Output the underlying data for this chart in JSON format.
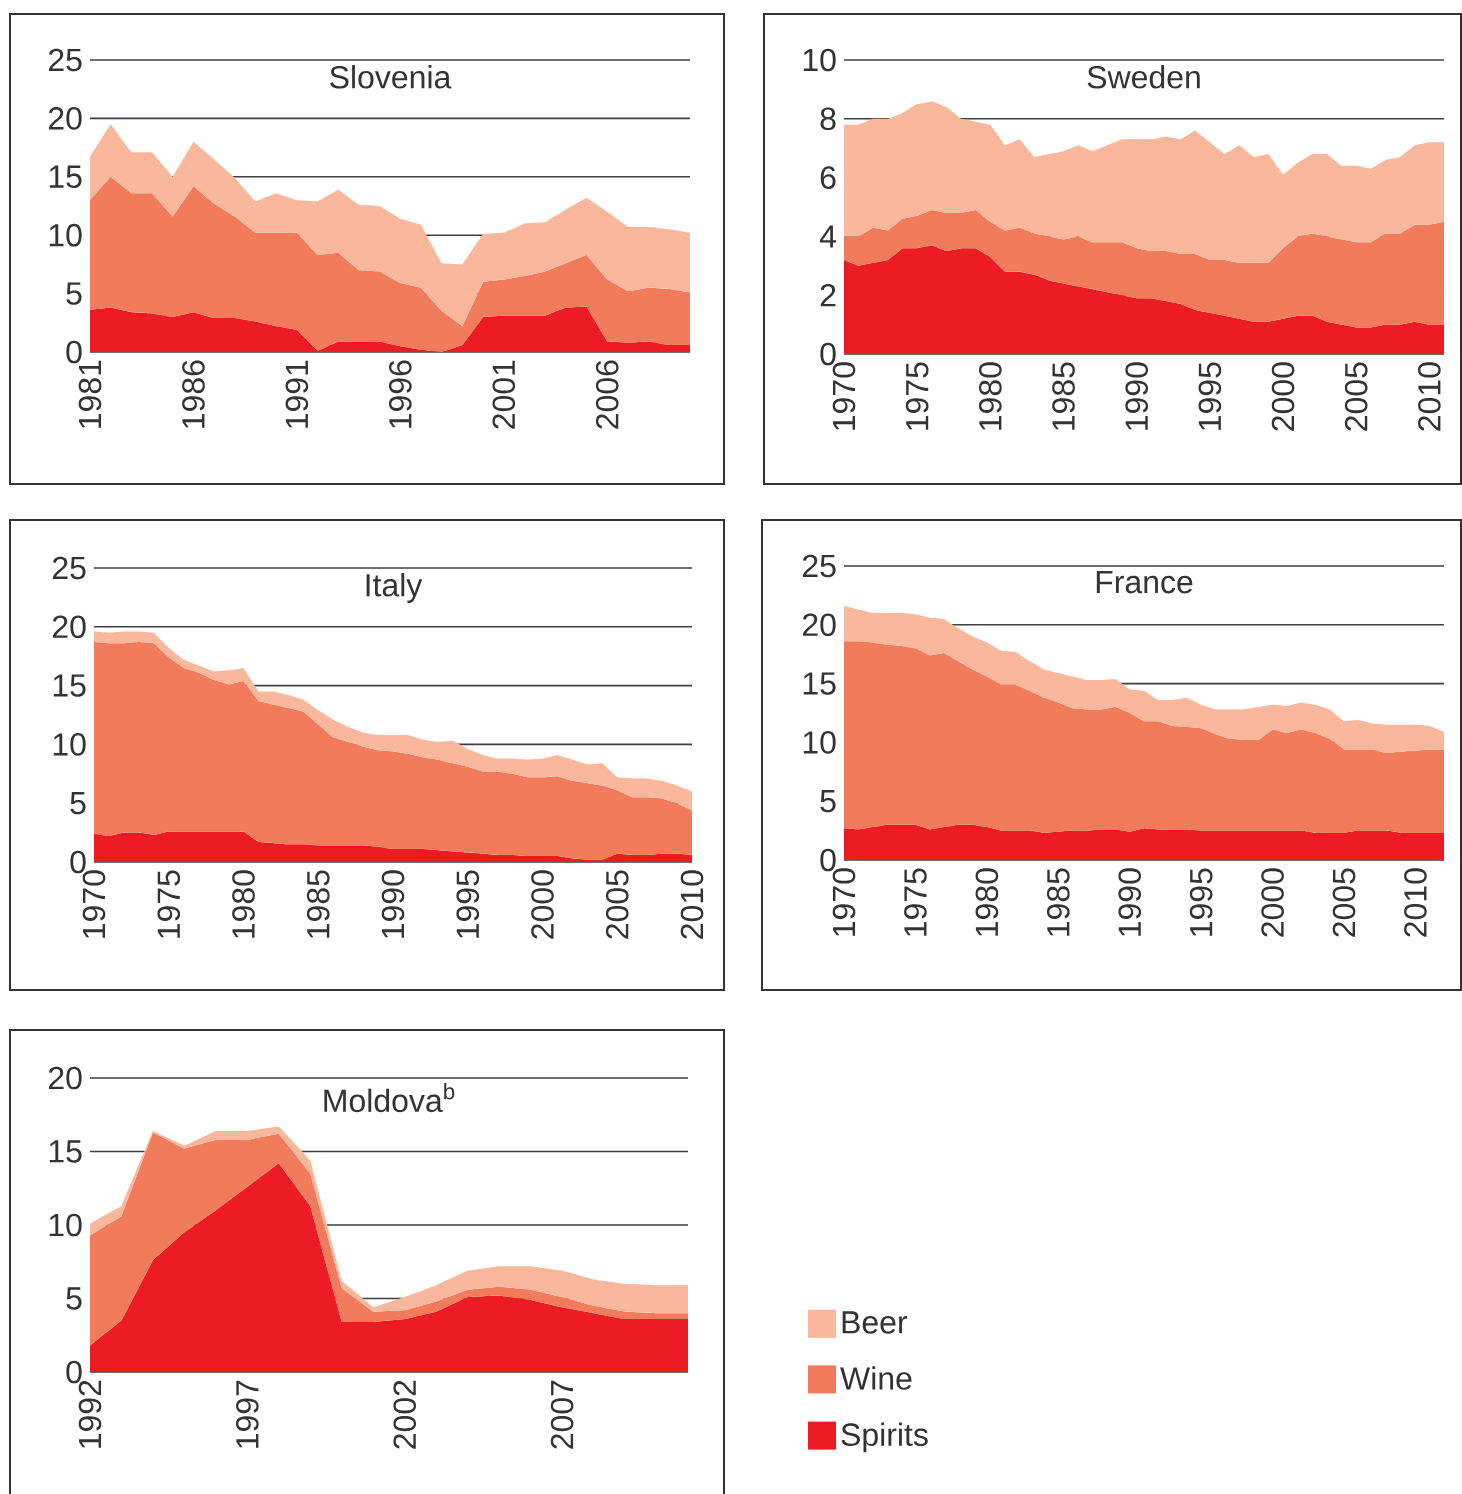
{
  "chart_data": [
    {
      "type": "area",
      "title": "Slovenia",
      "stacked": true,
      "grid": "y",
      "xlim": [
        1981,
        2010
      ],
      "xticks": [
        1981,
        1986,
        1991,
        1996,
        2001,
        2006
      ],
      "ylim": [
        0,
        25
      ],
      "yticks": [
        0,
        5,
        10,
        15,
        20,
        25
      ],
      "x": [
        1981,
        1982,
        1983,
        1984,
        1985,
        1986,
        1987,
        1988,
        1989,
        1990,
        1991,
        1992,
        1993,
        1994,
        1995,
        1996,
        1997,
        1998,
        1999,
        2000,
        2001,
        2002,
        2003,
        2004,
        2005,
        2006,
        2007,
        2008,
        2009,
        2010
      ],
      "series": [
        {
          "color": "#ed1c24",
          "values": [
            3.6,
            3.8,
            3.4,
            3.3,
            3.0,
            3.4,
            2.9,
            2.9,
            2.6,
            2.2,
            1.9,
            0.1,
            0.9,
            0.9,
            0.9,
            0.5,
            0.2,
            0.0,
            0.6,
            3.0,
            3.1,
            3.1,
            3.1,
            3.8,
            3.9,
            0.9,
            0.8,
            0.9,
            0.6,
            0.6
          ]
        },
        {
          "color": "#f27b5b",
          "values": [
            9.4,
            11.2,
            10.2,
            10.3,
            8.6,
            10.8,
            9.8,
            8.7,
            7.6,
            8.0,
            8.3,
            8.2,
            7.6,
            6.1,
            6.0,
            5.4,
            5.3,
            3.5,
            1.6,
            3.0,
            3.1,
            3.4,
            3.8,
            3.8,
            4.4,
            5.3,
            4.4,
            4.6,
            4.8,
            4.5
          ]
        },
        {
          "color": "#f9b79c",
          "values": [
            3.7,
            4.5,
            3.5,
            3.5,
            3.4,
            3.8,
            3.8,
            3.3,
            2.7,
            3.4,
            2.8,
            4.6,
            5.4,
            5.6,
            5.6,
            5.5,
            5.4,
            4.1,
            5.3,
            4.1,
            4.0,
            4.5,
            4.2,
            4.6,
            4.9,
            5.8,
            5.5,
            5.2,
            5.1,
            5.1
          ]
        }
      ]
    },
    {
      "type": "area",
      "title": "Sweden",
      "stacked": true,
      "grid": "y",
      "xlim": [
        1970,
        2011
      ],
      "xticks": [
        1970,
        1975,
        1980,
        1985,
        1990,
        1995,
        2000,
        2005,
        2010
      ],
      "ylim": [
        0,
        10
      ],
      "yticks": [
        0,
        2,
        4,
        6,
        8,
        10
      ],
      "x": [
        1970,
        1971,
        1972,
        1973,
        1974,
        1975,
        1976,
        1977,
        1978,
        1979,
        1980,
        1981,
        1982,
        1983,
        1984,
        1985,
        1986,
        1987,
        1988,
        1989,
        1990,
        1991,
        1992,
        1993,
        1994,
        1995,
        1996,
        1997,
        1998,
        1999,
        2000,
        2001,
        2002,
        2003,
        2004,
        2005,
        2006,
        2007,
        2008,
        2009,
        2010,
        2011
      ],
      "series": [
        {
          "color": "#ed1c24",
          "values": [
            3.2,
            3.0,
            3.1,
            3.2,
            3.6,
            3.6,
            3.7,
            3.5,
            3.6,
            3.6,
            3.3,
            2.8,
            2.8,
            2.7,
            2.5,
            2.4,
            2.3,
            2.2,
            2.1,
            2.0,
            1.9,
            1.9,
            1.8,
            1.7,
            1.5,
            1.4,
            1.3,
            1.2,
            1.1,
            1.1,
            1.2,
            1.3,
            1.3,
            1.1,
            1.0,
            0.9,
            0.9,
            1.0,
            1.0,
            1.1,
            1.0,
            1.0
          ]
        },
        {
          "color": "#f27b5b",
          "values": [
            0.8,
            1.0,
            1.2,
            1.0,
            1.0,
            1.1,
            1.2,
            1.3,
            1.2,
            1.3,
            1.2,
            1.4,
            1.5,
            1.4,
            1.5,
            1.5,
            1.7,
            1.6,
            1.7,
            1.8,
            1.7,
            1.6,
            1.7,
            1.7,
            1.9,
            1.8,
            1.9,
            1.9,
            2.0,
            2.0,
            2.4,
            2.7,
            2.8,
            2.9,
            2.9,
            2.9,
            2.9,
            3.1,
            3.1,
            3.3,
            3.4,
            3.5
          ]
        },
        {
          "color": "#f9b79c",
          "values": [
            3.8,
            3.8,
            3.7,
            3.8,
            3.6,
            3.8,
            3.7,
            3.6,
            3.2,
            3.0,
            3.3,
            2.9,
            3.0,
            2.6,
            2.8,
            3.0,
            3.1,
            3.1,
            3.3,
            3.5,
            3.7,
            3.8,
            3.9,
            3.9,
            4.2,
            4.0,
            3.6,
            4.0,
            3.6,
            3.7,
            2.5,
            2.5,
            2.7,
            2.8,
            2.5,
            2.6,
            2.5,
            2.5,
            2.6,
            2.7,
            2.8,
            2.7
          ]
        }
      ]
    },
    {
      "type": "area",
      "title": "Italy",
      "stacked": true,
      "grid": "y",
      "xlim": [
        1970,
        2010
      ],
      "xticks": [
        1970,
        1975,
        1980,
        1985,
        1990,
        1995,
        2000,
        2005,
        2010
      ],
      "ylim": [
        0,
        25
      ],
      "yticks": [
        0,
        5,
        10,
        15,
        20,
        25
      ],
      "x": [
        1970,
        1971,
        1972,
        1973,
        1974,
        1975,
        1976,
        1977,
        1978,
        1979,
        1980,
        1981,
        1982,
        1983,
        1984,
        1985,
        1986,
        1987,
        1988,
        1989,
        1990,
        1991,
        1992,
        1993,
        1994,
        1995,
        1996,
        1997,
        1998,
        1999,
        2000,
        2001,
        2002,
        2003,
        2004,
        2005,
        2006,
        2007,
        2008,
        2009,
        2010
      ],
      "series": [
        {
          "color": "#ed1c24",
          "values": [
            2.4,
            2.2,
            2.5,
            2.5,
            2.3,
            2.6,
            2.6,
            2.6,
            2.6,
            2.6,
            2.6,
            1.7,
            1.6,
            1.5,
            1.5,
            1.4,
            1.4,
            1.4,
            1.4,
            1.3,
            1.1,
            1.1,
            1.1,
            1.0,
            0.9,
            0.8,
            0.7,
            0.6,
            0.6,
            0.5,
            0.5,
            0.5,
            0.3,
            0.2,
            0.2,
            0.7,
            0.6,
            0.6,
            0.7,
            0.7,
            0.6
          ]
        },
        {
          "color": "#f27b5b",
          "values": [
            16.3,
            16.4,
            16.1,
            16.2,
            16.3,
            14.8,
            13.9,
            13.5,
            12.9,
            12.5,
            12.8,
            12.0,
            11.8,
            11.6,
            11.3,
            10.3,
            9.2,
            8.8,
            8.4,
            8.2,
            8.3,
            8.1,
            7.8,
            7.7,
            7.5,
            7.3,
            7.0,
            7.1,
            6.9,
            6.7,
            6.7,
            6.8,
            6.6,
            6.5,
            6.3,
            5.4,
            4.9,
            4.9,
            4.7,
            4.3,
            3.8
          ]
        },
        {
          "color": "#f9b79c",
          "values": [
            0.9,
            0.9,
            1.0,
            0.9,
            0.9,
            0.8,
            0.7,
            0.6,
            0.7,
            1.2,
            1.1,
            0.8,
            1.1,
            1.1,
            1.0,
            1.2,
            1.5,
            1.3,
            1.2,
            1.3,
            1.4,
            1.6,
            1.5,
            1.5,
            1.9,
            1.5,
            1.4,
            1.1,
            1.3,
            1.5,
            1.6,
            1.8,
            1.8,
            1.6,
            1.9,
            1.1,
            1.6,
            1.6,
            1.5,
            1.5,
            1.6
          ]
        }
      ]
    },
    {
      "type": "area",
      "title": "France",
      "stacked": true,
      "grid": "y",
      "xlim": [
        1970,
        2012
      ],
      "xticks": [
        1970,
        1975,
        1980,
        1985,
        1990,
        1995,
        2000,
        2005,
        2010
      ],
      "ylim": [
        0,
        25
      ],
      "yticks": [
        0,
        5,
        10,
        15,
        20,
        25
      ],
      "x": [
        1970,
        1971,
        1972,
        1973,
        1974,
        1975,
        1976,
        1977,
        1978,
        1979,
        1980,
        1981,
        1982,
        1983,
        1984,
        1985,
        1986,
        1987,
        1988,
        1989,
        1990,
        1991,
        1992,
        1993,
        1994,
        1995,
        1996,
        1997,
        1998,
        1999,
        2000,
        2001,
        2002,
        2003,
        2004,
        2005,
        2006,
        2007,
        2008,
        2009,
        2010,
        2011,
        2012
      ],
      "series": [
        {
          "color": "#ed1c24",
          "values": [
            2.7,
            2.6,
            2.8,
            3.0,
            3.0,
            3.0,
            2.6,
            2.8,
            3.0,
            3.0,
            2.8,
            2.5,
            2.5,
            2.5,
            2.3,
            2.4,
            2.5,
            2.5,
            2.6,
            2.6,
            2.4,
            2.7,
            2.6,
            2.6,
            2.6,
            2.5,
            2.5,
            2.5,
            2.5,
            2.5,
            2.5,
            2.5,
            2.5,
            2.3,
            2.3,
            2.3,
            2.5,
            2.5,
            2.5,
            2.3,
            2.3,
            2.3,
            2.3
          ]
        },
        {
          "color": "#f27b5b",
          "values": [
            15.9,
            16.0,
            15.7,
            15.3,
            15.2,
            15.0,
            14.8,
            14.8,
            13.9,
            13.2,
            12.8,
            12.4,
            12.4,
            11.9,
            11.5,
            11.0,
            10.4,
            10.3,
            10.2,
            10.4,
            10.1,
            9.1,
            9.2,
            8.8,
            8.7,
            8.7,
            8.2,
            7.8,
            7.7,
            7.7,
            8.6,
            8.3,
            8.6,
            8.5,
            8.0,
            7.1,
            6.9,
            6.9,
            6.6,
            6.9,
            7.0,
            7.1,
            7.1
          ]
        },
        {
          "color": "#f9b79c",
          "values": [
            3.0,
            2.7,
            2.5,
            2.7,
            2.8,
            2.9,
            3.2,
            2.9,
            2.8,
            2.8,
            2.9,
            2.9,
            2.8,
            2.5,
            2.4,
            2.5,
            2.7,
            2.5,
            2.5,
            2.4,
            2.0,
            2.6,
            1.8,
            2.2,
            2.5,
            2.0,
            2.1,
            2.5,
            2.6,
            2.8,
            2.1,
            2.3,
            2.3,
            2.4,
            2.5,
            2.4,
            2.5,
            2.2,
            2.4,
            2.3,
            2.2,
            2.0,
            1.5
          ]
        }
      ]
    },
    {
      "type": "area",
      "title": "Moldova$^{b}$",
      "stacked": true,
      "grid": "y",
      "legend": "right",
      "xlim": [
        1992,
        2011
      ],
      "xticks": [
        1992,
        1997,
        2002,
        2007
      ],
      "ylim": [
        0,
        20
      ],
      "yticks": [
        0,
        5,
        10,
        15,
        20
      ],
      "x": [
        1992,
        1993,
        1994,
        1995,
        1996,
        1997,
        1998,
        1999,
        2000,
        2001,
        2002,
        2003,
        2004,
        2005,
        2006,
        2007,
        2008,
        2009,
        2010,
        2011
      ],
      "series": [
        {
          "name": "Spirits",
          "color": "#ed1c24",
          "values": [
            1.8,
            3.5,
            7.6,
            9.5,
            11.0,
            12.6,
            14.2,
            11.3,
            3.4,
            3.4,
            3.6,
            4.1,
            5.1,
            5.2,
            4.9,
            4.4,
            4.0,
            3.6,
            3.6,
            3.6
          ]
        },
        {
          "name": "Wine",
          "color": "#f27b5b",
          "values": [
            7.5,
            7.1,
            8.7,
            5.7,
            4.8,
            3.2,
            2.0,
            2.2,
            2.3,
            0.7,
            0.6,
            0.7,
            0.5,
            0.6,
            0.7,
            0.7,
            0.5,
            0.5,
            0.4,
            0.4
          ]
        },
        {
          "name": "Beer",
          "color": "#f9b79c",
          "values": [
            0.8,
            0.7,
            0.1,
            0.2,
            0.6,
            0.6,
            0.5,
            0.9,
            0.5,
            0.3,
            0.9,
            1.1,
            1.3,
            1.4,
            1.6,
            1.8,
            1.8,
            1.9,
            1.9,
            1.9
          ]
        }
      ]
    }
  ]
}
